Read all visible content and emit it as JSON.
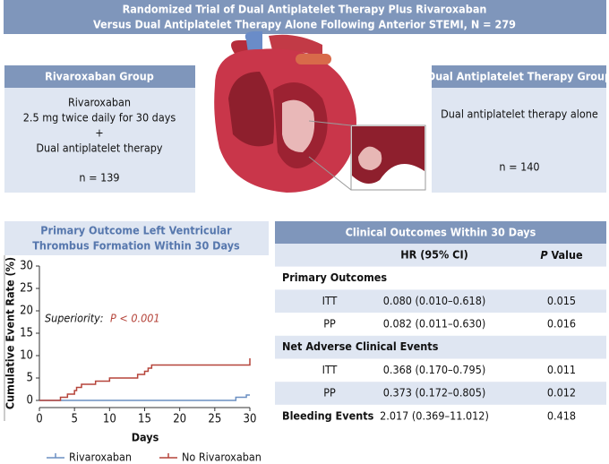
{
  "header": {
    "title": [
      "Randomized Trial of Dual Antiplatelet Therapy Plus Rivaroxaban",
      "Versus Dual Antiplatelet Therapy Alone Following Anterior STEMI, N = 279"
    ]
  },
  "left_group": {
    "title": "Rivaroxaban Group",
    "lines": [
      "Rivaroxaban",
      "2.5 mg twice daily for 30 days",
      "+",
      "Dual antiplatelet therapy"
    ],
    "n": "n = 139"
  },
  "right_group": {
    "title": "Dual Antiplatelet Therapy Group",
    "lines": [
      "Dual antiplatelet therapy alone"
    ],
    "n": "n = 140"
  },
  "chart_data": {
    "type": "line",
    "title": [
      "Primary Outcome Left Ventricular",
      "Thrombus Formation Within 30 Days"
    ],
    "xlabel": "Days",
    "ylabel": "Cumulative Event Rate (%)",
    "xlim": [
      0,
      30
    ],
    "ylim": [
      0,
      30
    ],
    "xticks": [
      0,
      5,
      10,
      15,
      20,
      25,
      30
    ],
    "yticks": [
      0,
      5,
      10,
      15,
      20,
      25,
      30
    ],
    "annotation": {
      "label": "Superiority:",
      "p": "P < 0.001"
    },
    "series": [
      {
        "name": "Rivaroxaban",
        "color": "#6b8fc2",
        "x": [
          0,
          28,
          29.5,
          30
        ],
        "values": [
          0,
          0.7,
          1.2,
          1.2
        ]
      },
      {
        "name": "No Rivaroxaban",
        "color": "#b5443a",
        "x": [
          0,
          3,
          4,
          5,
          5.3,
          6,
          8,
          10,
          14,
          15,
          15.5,
          16,
          29.8,
          30
        ],
        "values": [
          0,
          0.7,
          1.4,
          2.2,
          2.9,
          3.6,
          4.3,
          5.0,
          5.8,
          6.5,
          7.2,
          7.9,
          7.9,
          9.4
        ]
      }
    ]
  },
  "table": {
    "title": "Clinical Outcomes Within 30 Days",
    "hr_header": "HR (95% CI)",
    "p_header": {
      "italic": "P",
      "rest": " Value"
    },
    "groups": [
      {
        "name": "Primary Outcomes",
        "rows": [
          {
            "label": "ITT",
            "hr": "0.080 (0.010–0.618)",
            "p": "0.015"
          },
          {
            "label": "PP",
            "hr": "0.082 (0.011–0.630)",
            "p": "0.016"
          }
        ]
      },
      {
        "name": "Net Adverse Clinical Events",
        "rows": [
          {
            "label": "ITT",
            "hr": "0.368 (0.170–0.795)",
            "p": "0.011"
          },
          {
            "label": "PP",
            "hr": "0.373 (0.172–0.805)",
            "p": "0.012"
          }
        ]
      },
      {
        "name": "Bleeding Events",
        "hr": "2.017 (0.369–11.012)",
        "p": "0.418"
      }
    ]
  }
}
